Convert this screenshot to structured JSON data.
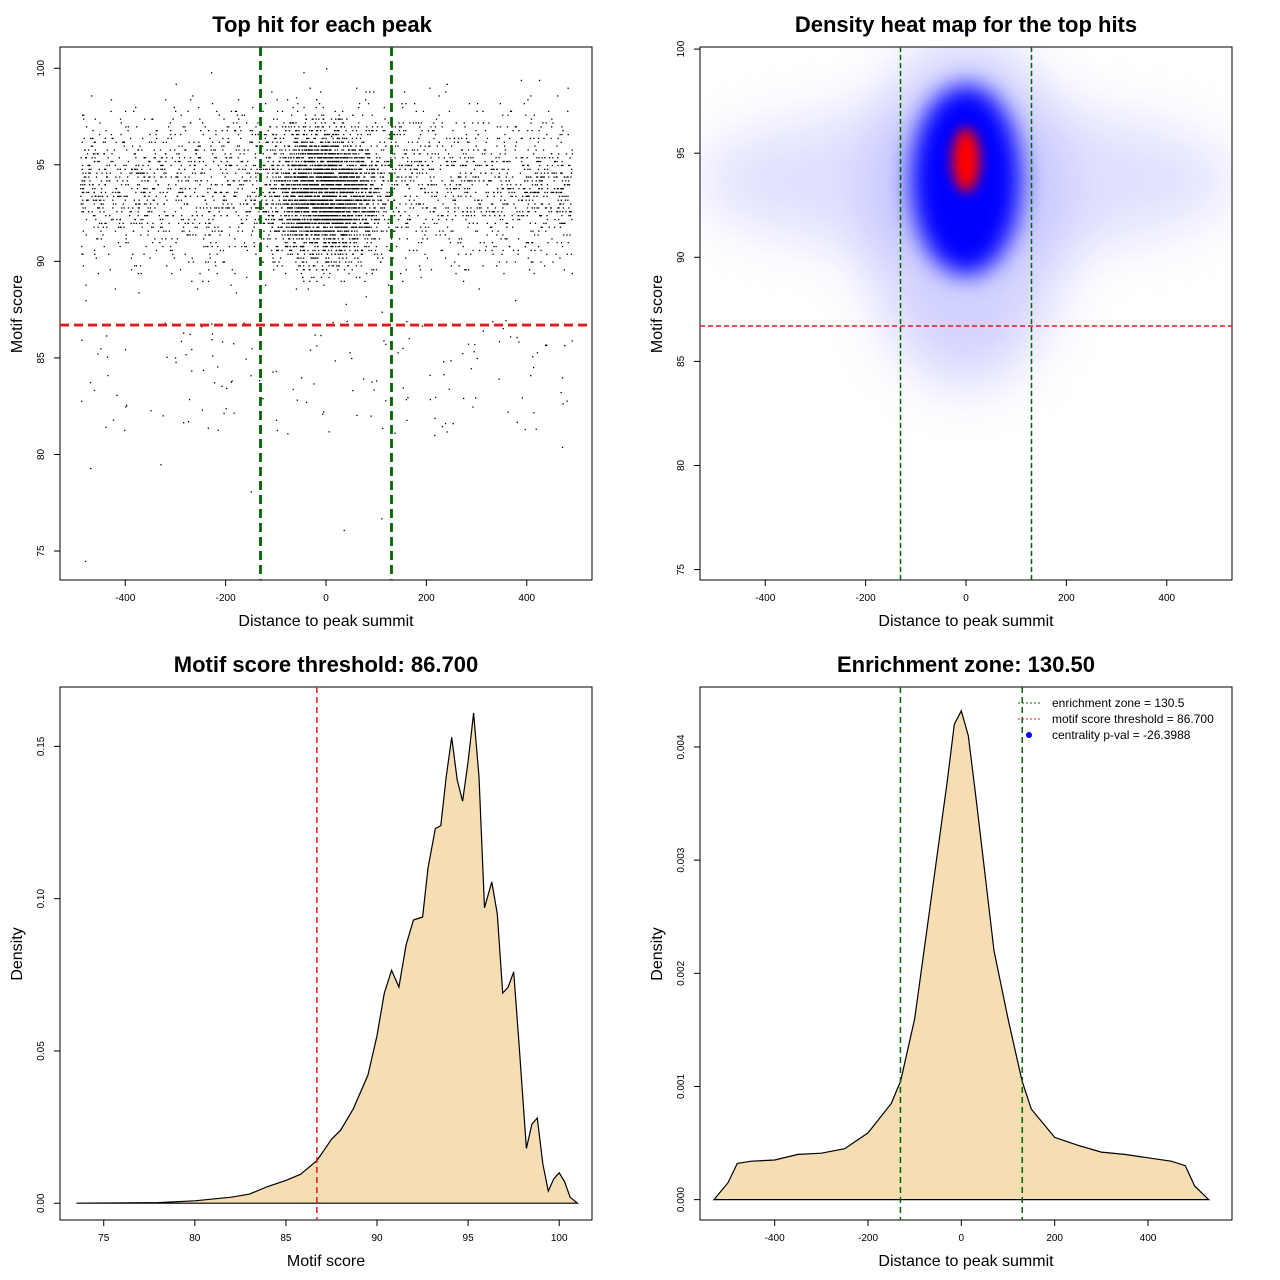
{
  "chart_data": [
    {
      "type": "scatter",
      "title": "Top hit for each peak",
      "xlabel": "Distance to peak summit",
      "ylabel": "Motif score",
      "xlim": [
        -530,
        530
      ],
      "ylim": [
        73.5,
        101.1
      ],
      "x_ticks": [
        -400,
        -200,
        0,
        200,
        400
      ],
      "x_tick_labels": [
        "-400",
        "-200",
        "0",
        "200",
        "400"
      ],
      "y_ticks": [
        75,
        80,
        85,
        90,
        95,
        100
      ],
      "y_tick_labels": [
        "75",
        "80",
        "85",
        "90",
        "95",
        "100"
      ],
      "vlines": [
        {
          "x": -130.5,
          "color": "#006400"
        },
        {
          "x": 130.5,
          "color": "#006400"
        }
      ],
      "hlines": [
        {
          "y": 86.7,
          "color": "#e31a1c"
        }
      ],
      "points_sample": [
        [
          -480,
          74.5
        ],
        [
          -470,
          79.3
        ],
        [
          -330,
          79.5
        ],
        [
          -150,
          78.1
        ],
        [
          35,
          76.1
        ],
        [
          110,
          76.7
        ],
        [
          470,
          80.4
        ],
        [
          -400,
          82.5
        ],
        [
          -350,
          82.3
        ],
        [
          -200,
          82.4
        ],
        [
          -100,
          81.8
        ],
        [
          160,
          81.8
        ],
        [
          240,
          81.2
        ],
        [
          380,
          81.7
        ],
        [
          470,
          84.0
        ],
        [
          -450,
          85.5
        ],
        [
          -300,
          84.8
        ],
        [
          -50,
          84.0
        ],
        [
          50,
          85.0
        ],
        [
          300,
          85.0
        ],
        [
          420,
          85.3
        ],
        [
          0,
          92.0
        ],
        [
          20,
          95.0
        ],
        [
          -20,
          94.0
        ],
        [
          10,
          96.5
        ],
        [
          -60,
          98.5
        ],
        [
          60,
          99.0
        ],
        [
          0,
          100.0
        ],
        [
          -420,
          93.0
        ],
        [
          440,
          94.0
        ],
        [
          -300,
          91.0
        ],
        [
          300,
          92.0
        ]
      ]
    },
    {
      "type": "heatmap",
      "title": "Density heat map for the top hits",
      "xlabel": "Distance to peak summit",
      "ylabel": "Motif score",
      "xlim": [
        -530,
        530
      ],
      "ylim": [
        74.5,
        100.1
      ],
      "x_ticks": [
        -400,
        -200,
        0,
        200,
        400
      ],
      "x_tick_labels": [
        "-400",
        "-200",
        "0",
        "200",
        "400"
      ],
      "y_ticks": [
        75,
        80,
        85,
        90,
        95,
        100
      ],
      "y_tick_labels": [
        "75",
        "80",
        "85",
        "90",
        "95",
        "100"
      ],
      "vlines": [
        {
          "x": -130.5,
          "color": "#006400"
        },
        {
          "x": 130.5,
          "color": "#006400"
        }
      ],
      "hlines": [
        {
          "y": 86.7,
          "color": "#e31a1c"
        }
      ],
      "density_peak": {
        "x": 0,
        "y": 94.5
      },
      "colors": [
        "#ffffff",
        "#0000ff",
        "#ff0000"
      ]
    },
    {
      "type": "area",
      "title": "Motif score threshold: 86.700",
      "xlabel": "Motif score",
      "ylabel": "Density",
      "xlim": [
        72.6,
        101.8
      ],
      "ylim": [
        -0.0055,
        0.1695
      ],
      "x_ticks": [
        75,
        80,
        85,
        90,
        95,
        100
      ],
      "x_tick_labels": [
        "75",
        "80",
        "85",
        "90",
        "95",
        "100"
      ],
      "y_ticks": [
        0,
        0.05,
        0.1,
        0.15
      ],
      "y_tick_labels": [
        "0.00",
        "0.05",
        "0.10",
        "0.15"
      ],
      "vlines": [
        {
          "x": 86.7,
          "color": "#e31a1c"
        }
      ],
      "fill": "#f5deb3",
      "x": [
        73.5,
        78,
        80,
        82,
        83,
        84,
        85,
        85.8,
        86.7,
        87.5,
        88,
        88.7,
        89.5,
        90,
        90.4,
        90.8,
        91.2,
        91.6,
        92,
        92.5,
        92.8,
        93.2,
        93.5,
        93.8,
        94.1,
        94.4,
        94.7,
        95.0,
        95.3,
        95.6,
        95.9,
        96.3,
        96.6,
        96.9,
        97.2,
        97.5,
        97.8,
        98.2,
        98.5,
        98.8,
        99.1,
        99.4,
        99.7,
        100.0,
        100.3,
        100.6,
        101.0
      ],
      "y": [
        0.0,
        0.0002,
        0.0008,
        0.002,
        0.003,
        0.0055,
        0.0075,
        0.0095,
        0.014,
        0.021,
        0.024,
        0.031,
        0.042,
        0.055,
        0.069,
        0.0765,
        0.071,
        0.085,
        0.093,
        0.094,
        0.11,
        0.123,
        0.124,
        0.14,
        0.153,
        0.139,
        0.132,
        0.145,
        0.161,
        0.14,
        0.097,
        0.1055,
        0.095,
        0.069,
        0.071,
        0.076,
        0.052,
        0.018,
        0.026,
        0.028,
        0.013,
        0.004,
        0.008,
        0.01,
        0.007,
        0.002,
        0.0
      ]
    },
    {
      "type": "area",
      "title": "Enrichment zone: 130.50",
      "xlabel": "Distance to peak summit",
      "ylabel": "Density",
      "xlim": [
        -560,
        580
      ],
      "ylim": [
        -0.00018,
        0.00453
      ],
      "x_ticks": [
        -400,
        -200,
        0,
        200,
        400
      ],
      "x_tick_labels": [
        "-400",
        "-200",
        "0",
        "200",
        "400"
      ],
      "y_ticks": [
        0,
        0.001,
        0.002,
        0.003,
        0.004
      ],
      "y_tick_labels": [
        "0.000",
        "0.001",
        "0.002",
        "0.003",
        "0.004"
      ],
      "vlines": [
        {
          "x": -130.5,
          "color": "#006400"
        },
        {
          "x": 130.5,
          "color": "#006400"
        }
      ],
      "fill": "#f5deb3",
      "x": [
        -530,
        -500,
        -480,
        -450,
        -400,
        -350,
        -300,
        -250,
        -200,
        -150,
        -130,
        -100,
        -70,
        -50,
        -30,
        -15,
        0,
        15,
        30,
        50,
        70,
        100,
        130,
        150,
        200,
        250,
        300,
        350,
        400,
        450,
        480,
        500,
        530
      ],
      "y": [
        0.0,
        0.00015,
        0.00032,
        0.00034,
        0.00035,
        0.0004,
        0.00041,
        0.00045,
        0.00059,
        0.00085,
        0.00105,
        0.0016,
        0.0025,
        0.0031,
        0.0037,
        0.0042,
        0.00432,
        0.0041,
        0.0036,
        0.0029,
        0.0022,
        0.0016,
        0.00105,
        0.0008,
        0.00055,
        0.00048,
        0.00042,
        0.0004,
        0.00037,
        0.00034,
        0.0003,
        0.00012,
        0.0
      ],
      "legend": {
        "position": "top-right",
        "entries": [
          {
            "label": "enrichment zone = 130.5",
            "color": "#006400",
            "style": "dotted-line"
          },
          {
            "label": "motif score threshold = 86.700",
            "color": "#e31a1c",
            "style": "dotted-line"
          },
          {
            "label": "centrality p-val = -26.3988",
            "color": "#0000ff",
            "style": "point"
          }
        ]
      }
    }
  ]
}
